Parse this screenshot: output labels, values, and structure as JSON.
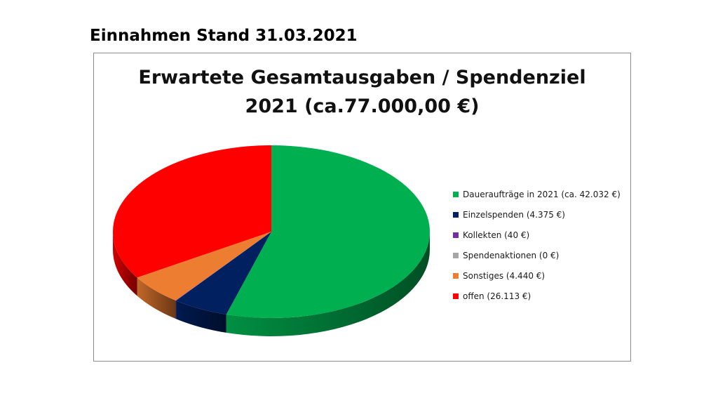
{
  "page": {
    "heading": "Einnahmen Stand 31.03.2021"
  },
  "chart_data": {
    "type": "pie",
    "title": "Erwartete Gesamtausgaben / Spendenziel",
    "subtitle": "2021 (ca.77.000,00 €)",
    "legend_position": "right",
    "style": "3d",
    "slices": [
      {
        "label": "Daueraufträge in 2021 (ca. 42.032 €)",
        "value": 42032,
        "color": "#00b050"
      },
      {
        "label": "Einzelspenden (4.375 €)",
        "value": 4375,
        "color": "#002060"
      },
      {
        "label": "Kollekten (40 €)",
        "value": 40,
        "color": "#7030a0"
      },
      {
        "label": "Spendenaktionen (0 €)",
        "value": 0,
        "color": "#a6a6a6"
      },
      {
        "label": "Sonstiges (4.440 €)",
        "value": 4440,
        "color": "#ed7d31"
      },
      {
        "label": "offen (26.113 €)",
        "value": 26113,
        "color": "#ff0000"
      }
    ]
  }
}
